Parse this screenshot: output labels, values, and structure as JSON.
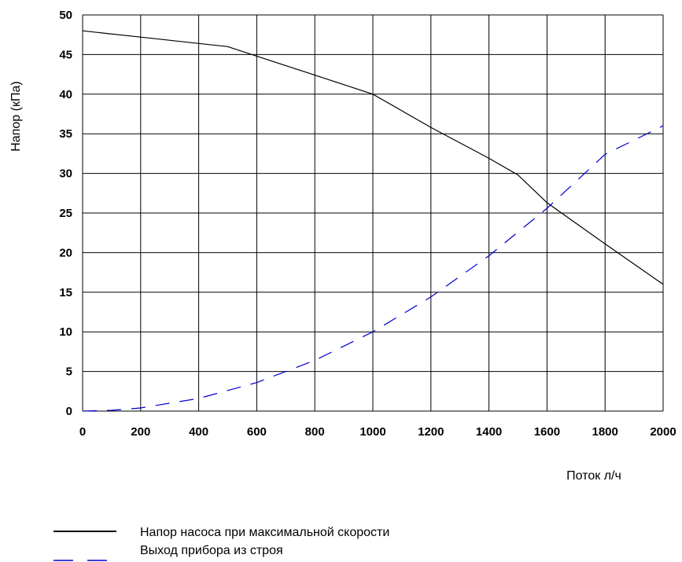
{
  "chart_data": {
    "type": "line",
    "xlabel": "Поток л/ч",
    "ylabel": "Напор (кПа)",
    "xlim": [
      0,
      2000
    ],
    "ylim": [
      0,
      50
    ],
    "x_ticks": [
      0,
      200,
      400,
      600,
      800,
      1000,
      1200,
      1400,
      1600,
      1800,
      2000
    ],
    "y_ticks": [
      0,
      5,
      10,
      15,
      20,
      25,
      30,
      35,
      40,
      45,
      50
    ],
    "grid": true,
    "legend_position": "bottom-left",
    "series": [
      {
        "name": "Напор насоса при максимальной скорости",
        "color": "#000000",
        "style": "solid",
        "x": [
          0,
          200,
          400,
          500,
          600,
          800,
          1000,
          1200,
          1400,
          1500,
          1600,
          1800,
          2000
        ],
        "y": [
          48,
          47.2,
          46.4,
          46,
          44.8,
          42.4,
          40,
          35.8,
          31.9,
          29.8,
          26.3,
          21.1,
          16
        ]
      },
      {
        "name": "Выход прибора из строя",
        "color": "#0000cc",
        "style": "dashed",
        "x": [
          0,
          100,
          200,
          400,
          600,
          800,
          1000,
          1200,
          1400,
          1600,
          1800,
          2000
        ],
        "y": [
          0,
          0.1,
          0.4,
          1.6,
          3.6,
          6.4,
          10,
          14.4,
          19.6,
          25.6,
          32.4,
          36
        ]
      }
    ]
  }
}
